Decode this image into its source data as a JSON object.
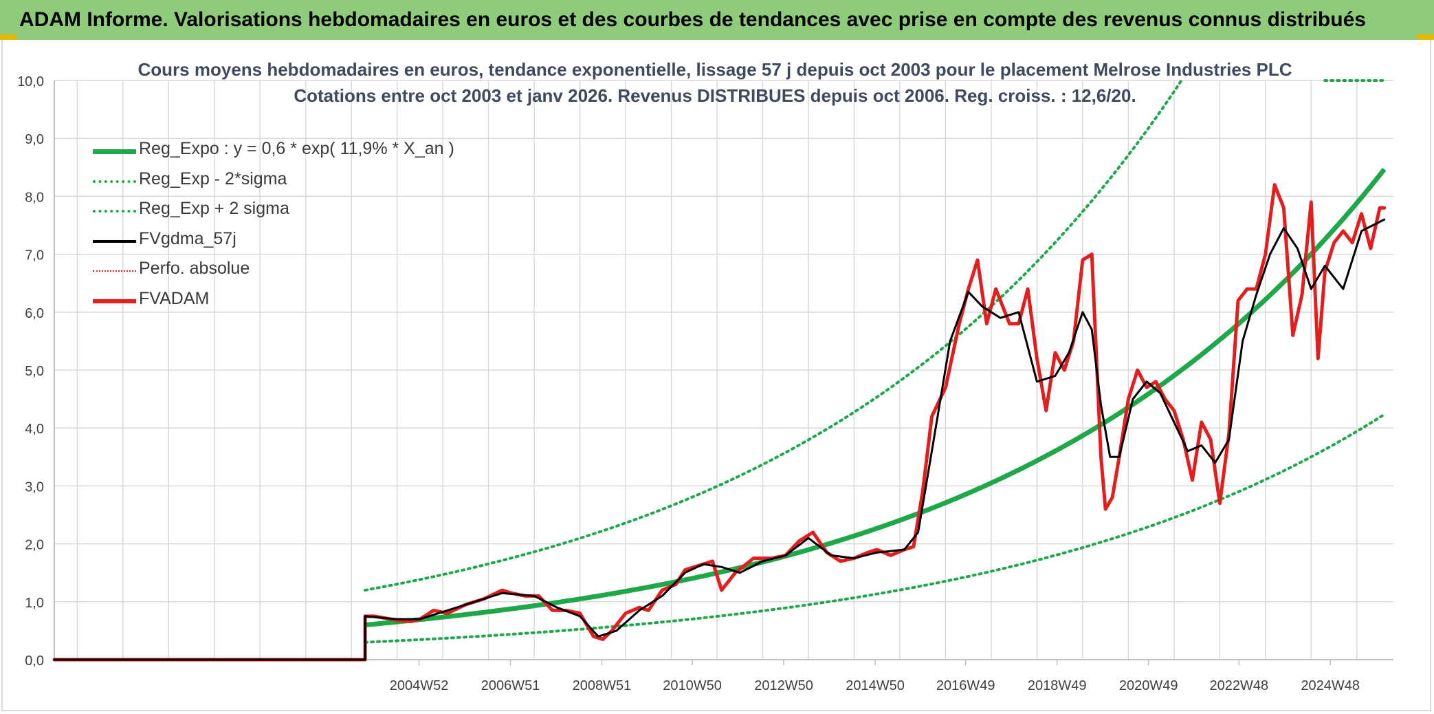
{
  "header": {
    "title": "ADAM Informe. Valorisations hebdomadaires en euros et des courbes de tendances avec prise en compte des revenus connus distribués"
  },
  "chart_data": {
    "type": "line",
    "title": "Cours moyens hebdomadaires en euros, tendance exponentielle, lissage 57 j depuis oct 2003 pour le placement Melrose Industries PLC",
    "subtitle": "Cotations entre oct 2003 et janv 2026. Revenus DISTRIBUES depuis oct 2006. Reg. croiss. : 12,6/20.",
    "xlabel": "",
    "ylabel": "",
    "ylim": [
      0,
      10
    ],
    "yticks": [
      "0,0",
      "1,0",
      "2,0",
      "3,0",
      "4,0",
      "5,0",
      "6,0",
      "7,0",
      "8,0",
      "9,0",
      "10,0"
    ],
    "x_tick_labels": [
      "2004W52",
      "2006W51",
      "2008W51",
      "2010W50",
      "2012W50",
      "2014W50",
      "2016W49",
      "2018W49",
      "2020W49",
      "2022W48",
      "2024W48"
    ],
    "x_tick_years": [
      2004.98,
      2006.98,
      2008.98,
      2010.96,
      2012.96,
      2014.96,
      2016.94,
      2018.94,
      2020.94,
      2022.92,
      2024.92
    ],
    "xlim": [
      1997.0,
      2026.3
    ],
    "grid": true,
    "legend_position": "top-left",
    "colors": {
      "trend": "#1fa84a",
      "bands": "#1fa84a",
      "smoothed": "#000000",
      "absolute": "#e31e1e",
      "fvadam": "#e31e1e",
      "grid": "#d9d9d9"
    },
    "legend": [
      {
        "key": "trend",
        "label": "Reg_Expo : y = 0,6 * exp( 11,9% *  X_an )"
      },
      {
        "key": "lower",
        "label": "Reg_Exp - 2*sigma"
      },
      {
        "key": "upper",
        "label": "Reg_Exp + 2 sigma"
      },
      {
        "key": "smoothed",
        "label": "FVgdma_57j"
      },
      {
        "key": "absolute",
        "label": "Perfo. absolue"
      },
      {
        "key": "fvadam",
        "label": "FVADAM"
      }
    ],
    "series": [
      {
        "name": "FVADAM",
        "x": [
          1997.0,
          2003.8,
          2003.8,
          2004.0,
          2004.5,
          2004.8,
          2005.0,
          2005.3,
          2005.6,
          2006.0,
          2006.4,
          2006.8,
          2007.0,
          2007.3,
          2007.6,
          2007.9,
          2008.2,
          2008.5,
          2008.8,
          2009.0,
          2009.2,
          2009.5,
          2009.8,
          2010.0,
          2010.3,
          2010.6,
          2010.8,
          2011.0,
          2011.2,
          2011.4,
          2011.6,
          2011.9,
          2012.3,
          2012.7,
          2013.0,
          2013.3,
          2013.6,
          2013.9,
          2014.2,
          2014.5,
          2014.8,
          2015.0,
          2015.3,
          2015.6,
          2015.8,
          2016.0,
          2016.2,
          2016.5,
          2016.8,
          2017.0,
          2017.2,
          2017.4,
          2017.6,
          2017.9,
          2018.1,
          2018.3,
          2018.5,
          2018.7,
          2018.9,
          2019.1,
          2019.3,
          2019.5,
          2019.7,
          2019.9,
          2020.0,
          2020.15,
          2020.3,
          2020.5,
          2020.7,
          2020.9,
          2021.1,
          2021.3,
          2021.5,
          2021.7,
          2021.9,
          2022.1,
          2022.3,
          2022.5,
          2022.7,
          2022.9,
          2023.1,
          2023.3,
          2023.5,
          2023.7,
          2023.9,
          2024.1,
          2024.3,
          2024.5,
          2024.65,
          2024.8,
          2025.0,
          2025.2,
          2025.4,
          2025.6,
          2025.8,
          2026.0,
          2026.1
        ],
        "values": [
          0.0,
          0.0,
          0.75,
          0.75,
          0.68,
          0.66,
          0.7,
          0.85,
          0.8,
          0.95,
          1.05,
          1.2,
          1.15,
          1.1,
          1.1,
          0.85,
          0.85,
          0.8,
          0.4,
          0.35,
          0.5,
          0.8,
          0.9,
          0.85,
          1.2,
          1.3,
          1.55,
          1.6,
          1.65,
          1.7,
          1.2,
          1.5,
          1.75,
          1.75,
          1.8,
          2.05,
          2.2,
          1.85,
          1.7,
          1.75,
          1.85,
          1.9,
          1.8,
          1.9,
          1.95,
          2.9,
          4.2,
          4.7,
          5.8,
          6.4,
          6.9,
          5.8,
          6.4,
          5.8,
          5.8,
          6.4,
          5.2,
          4.3,
          5.3,
          5.0,
          5.5,
          6.9,
          7.0,
          3.5,
          2.6,
          2.8,
          3.5,
          4.5,
          5.0,
          4.7,
          4.8,
          4.5,
          4.3,
          3.8,
          3.1,
          4.1,
          3.8,
          2.7,
          3.9,
          6.2,
          6.4,
          6.4,
          7.0,
          8.2,
          7.8,
          5.6,
          6.3,
          7.9,
          5.2,
          6.7,
          7.2,
          7.4,
          7.2,
          7.7,
          7.1,
          7.8,
          7.8
        ]
      },
      {
        "name": "FVgdma_57j",
        "x": [
          1997.0,
          2003.8,
          2003.8,
          2004.5,
          2005.0,
          2006.0,
          2006.8,
          2007.5,
          2008.0,
          2008.5,
          2008.9,
          2009.3,
          2009.8,
          2010.3,
          2010.8,
          2011.2,
          2011.6,
          2012.0,
          2012.5,
          2013.0,
          2013.5,
          2014.0,
          2014.5,
          2015.0,
          2015.6,
          2015.9,
          2016.2,
          2016.6,
          2017.0,
          2017.3,
          2017.7,
          2018.1,
          2018.5,
          2018.9,
          2019.2,
          2019.5,
          2019.7,
          2019.9,
          2020.1,
          2020.3,
          2020.6,
          2020.9,
          2021.2,
          2021.5,
          2021.8,
          2022.1,
          2022.4,
          2022.7,
          2023.0,
          2023.3,
          2023.6,
          2023.9,
          2024.2,
          2024.5,
          2024.8,
          2025.2,
          2025.6,
          2026.1
        ],
        "values": [
          0.0,
          0.0,
          0.75,
          0.7,
          0.7,
          0.95,
          1.15,
          1.1,
          0.9,
          0.75,
          0.4,
          0.5,
          0.85,
          1.1,
          1.5,
          1.65,
          1.6,
          1.5,
          1.7,
          1.8,
          2.1,
          1.8,
          1.75,
          1.85,
          1.9,
          2.2,
          3.6,
          5.5,
          6.35,
          6.1,
          5.9,
          6.0,
          4.8,
          4.9,
          5.3,
          6.0,
          5.7,
          4.4,
          3.5,
          3.5,
          4.5,
          4.8,
          4.6,
          4.1,
          3.6,
          3.7,
          3.4,
          3.8,
          5.5,
          6.3,
          7.0,
          7.45,
          7.1,
          6.4,
          6.8,
          6.4,
          7.4,
          7.6
        ]
      }
    ]
  }
}
